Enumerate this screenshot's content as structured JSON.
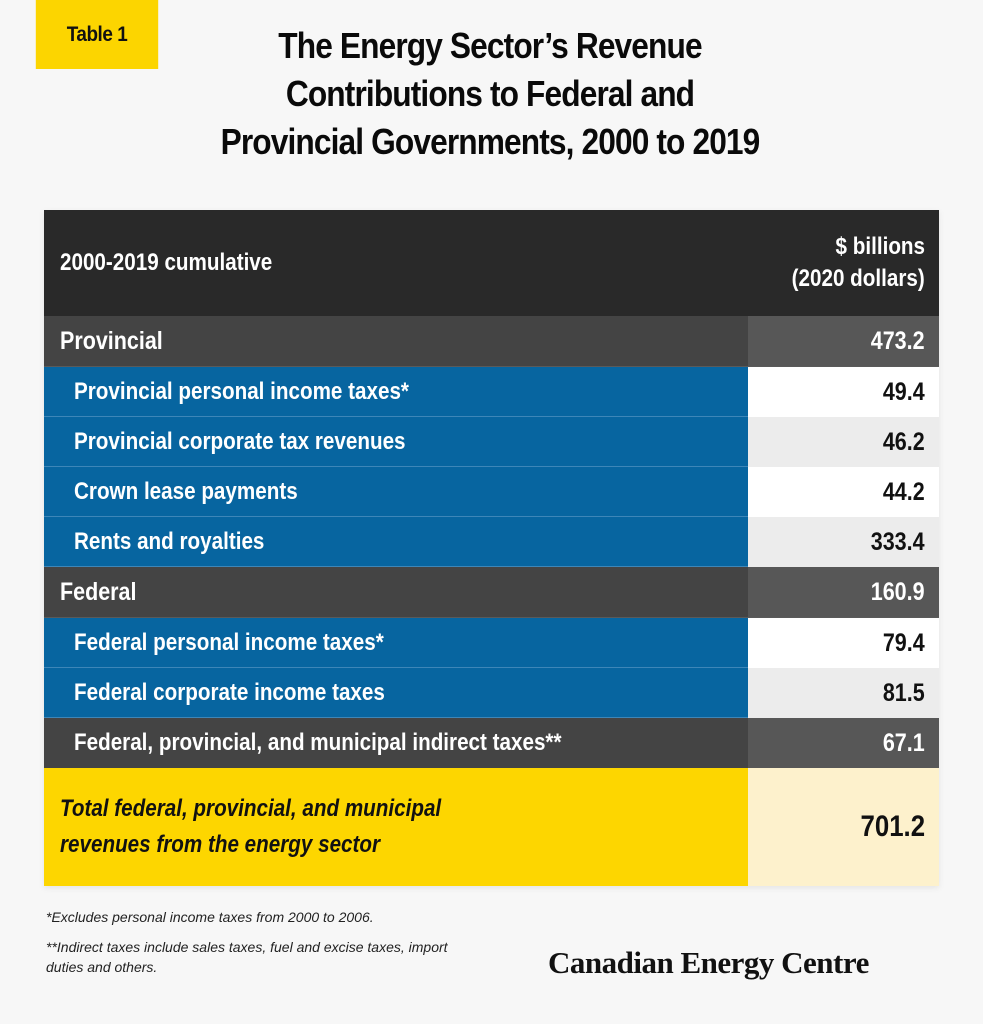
{
  "tag": "Table 1",
  "title_lines": [
    "The Energy Sector’s Revenue",
    "Contributions to Federal and",
    "Provincial Governments, 2000 to 2019"
  ],
  "chart_data": {
    "type": "table",
    "title": "The Energy Sector’s Revenue Contributions to Federal and Provincial Governments, 2000 to 2019",
    "columns": [
      "2000-2019 cumulative",
      "$ billions (2020 dollars)"
    ],
    "header": {
      "label": "2000-2019 cumulative",
      "value_line1": "$ billions",
      "value_line2": "(2020 dollars)"
    },
    "rows": [
      {
        "label": "Provincial",
        "value": "473.2",
        "level": "group"
      },
      {
        "label": "Provincial personal income taxes*",
        "value": "49.4",
        "level": "sub"
      },
      {
        "label": "Provincial corporate tax revenues",
        "value": "46.2",
        "level": "sub"
      },
      {
        "label": "Crown lease payments",
        "value": "44.2",
        "level": "sub"
      },
      {
        "label": "Rents and royalties",
        "value": "333.4",
        "level": "sub"
      },
      {
        "label": "Federal",
        "value": "160.9",
        "level": "group"
      },
      {
        "label": "Federal personal income taxes*",
        "value": "79.4",
        "level": "sub"
      },
      {
        "label": "Federal corporate income taxes",
        "value": "81.5",
        "level": "sub"
      },
      {
        "label": "Federal, provincial, and municipal indirect taxes**",
        "value": "67.1",
        "level": "group-sub"
      }
    ],
    "total": {
      "label_line1": "Total federal, provincial, and municipal",
      "label_line2": "revenues from the energy sector",
      "value": "701.2"
    }
  },
  "notes": [
    "*Excludes personal income taxes from 2000 to 2006.",
    "**Indirect taxes include sales taxes, fuel and excise taxes, import duties and others."
  ],
  "brand": "Canadian Energy Centre",
  "colors": {
    "yellow": "#fcd500",
    "blue": "#0765a0",
    "dark": "#292929",
    "grey": "#444444"
  }
}
